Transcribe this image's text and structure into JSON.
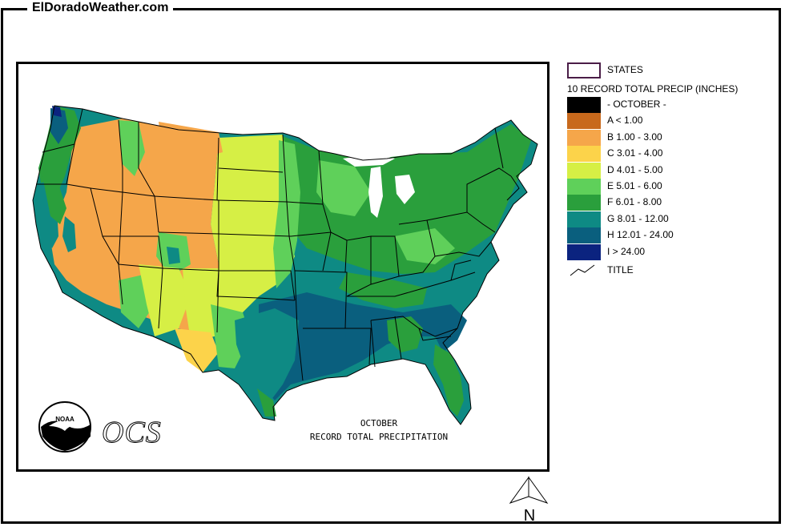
{
  "site": {
    "title": "ElDoradoWeather.com"
  },
  "map": {
    "caption_line1": "OCTOBER",
    "caption_line2": "RECORD TOTAL PRECIPITATION",
    "noaa_logo_text": "NOAA",
    "ocs_logo_text": "OCS"
  },
  "legend": {
    "states_label": "STATES",
    "heading": "10 RECORD TOTAL PRECIP (INCHES)",
    "items": [
      {
        "label": "- OCTOBER -",
        "color": "#000000"
      },
      {
        "label": "A < 1.00",
        "color": "#c8691c"
      },
      {
        "label": "B 1.00 - 3.00",
        "color": "#f5a64a"
      },
      {
        "label": "C 3.01 - 4.00",
        "color": "#fcd34a"
      },
      {
        "label": "D 4.01 - 5.00",
        "color": "#d6ef45"
      },
      {
        "label": "E 5.01 - 6.00",
        "color": "#5fd05a"
      },
      {
        "label": "F 6.01 - 8.00",
        "color": "#2a9f3c"
      },
      {
        "label": "G 8.01 - 12.00",
        "color": "#0e8a84"
      },
      {
        "label": "H 12.01 - 24.00",
        "color": "#0a5f7e"
      },
      {
        "label": "I > 24.00",
        "color": "#0b237f"
      }
    ],
    "title_label": "TITLE"
  },
  "north_arrow": {
    "label": "N"
  }
}
